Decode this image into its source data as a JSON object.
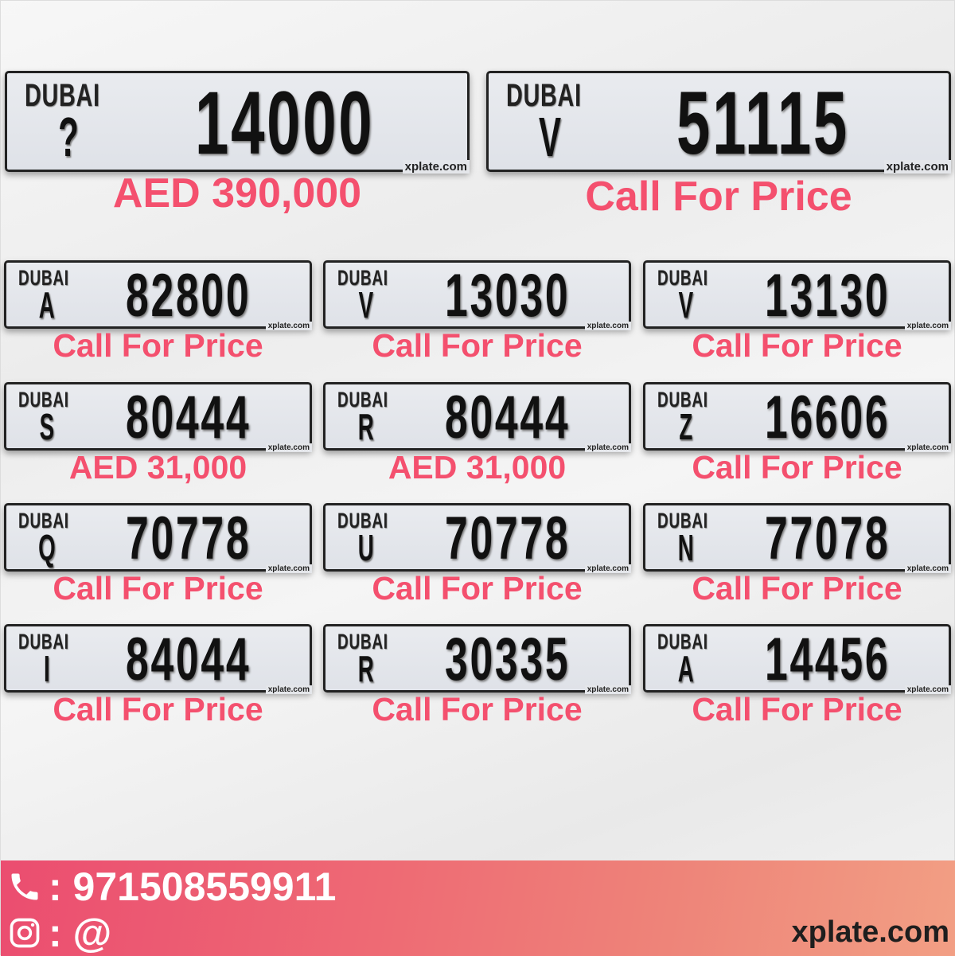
{
  "featured": [
    {
      "emirate": "DUBAI",
      "code": "?",
      "number": "14000",
      "watermark": "xplate.com",
      "price": "AED 390,000"
    },
    {
      "emirate": "DUBAI",
      "code": "V",
      "number": "51115",
      "watermark": "xplate.com",
      "price": "Call For Price"
    }
  ],
  "plates": [
    {
      "emirate": "DUBAI",
      "code": "A",
      "number": "82800",
      "watermark": "xplate.com",
      "price": "Call For Price"
    },
    {
      "emirate": "DUBAI",
      "code": "V",
      "number": "13030",
      "watermark": "xplate.com",
      "price": "Call For Price"
    },
    {
      "emirate": "DUBAI",
      "code": "V",
      "number": "13130",
      "watermark": "xplate.com",
      "price": "Call For Price"
    },
    {
      "emirate": "DUBAI",
      "code": "S",
      "number": "80444",
      "watermark": "xplate.com",
      "price": "AED 31,000"
    },
    {
      "emirate": "DUBAI",
      "code": "R",
      "number": "80444",
      "watermark": "xplate.com",
      "price": "AED 31,000"
    },
    {
      "emirate": "DUBAI",
      "code": "Z",
      "number": "16606",
      "watermark": "xplate.com",
      "price": "Call For Price"
    },
    {
      "emirate": "DUBAI",
      "code": "Q",
      "number": "70778",
      "watermark": "xplate.com",
      "price": "Call For Price"
    },
    {
      "emirate": "DUBAI",
      "code": "U",
      "number": "70778",
      "watermark": "xplate.com",
      "price": "Call For Price"
    },
    {
      "emirate": "DUBAI",
      "code": "N",
      "number": "77078",
      "watermark": "xplate.com",
      "price": "Call For Price"
    },
    {
      "emirate": "DUBAI",
      "code": "I",
      "number": "84044",
      "watermark": "xplate.com",
      "price": "Call For Price"
    },
    {
      "emirate": "DUBAI",
      "code": "R",
      "number": "30335",
      "watermark": "xplate.com",
      "price": "Call For Price"
    },
    {
      "emirate": "DUBAI",
      "code": "A",
      "number": "14456",
      "watermark": "xplate.com",
      "price": "Call For Price"
    }
  ],
  "footer": {
    "phone_icon": "phone-icon",
    "phone": ": 971508559911",
    "instagram_icon": "instagram-icon",
    "instagram": ": @",
    "site": "xplate.com"
  },
  "colors": {
    "price": "#f4506e",
    "banner_start": "#eb4d70",
    "banner_end": "#f29f84"
  }
}
